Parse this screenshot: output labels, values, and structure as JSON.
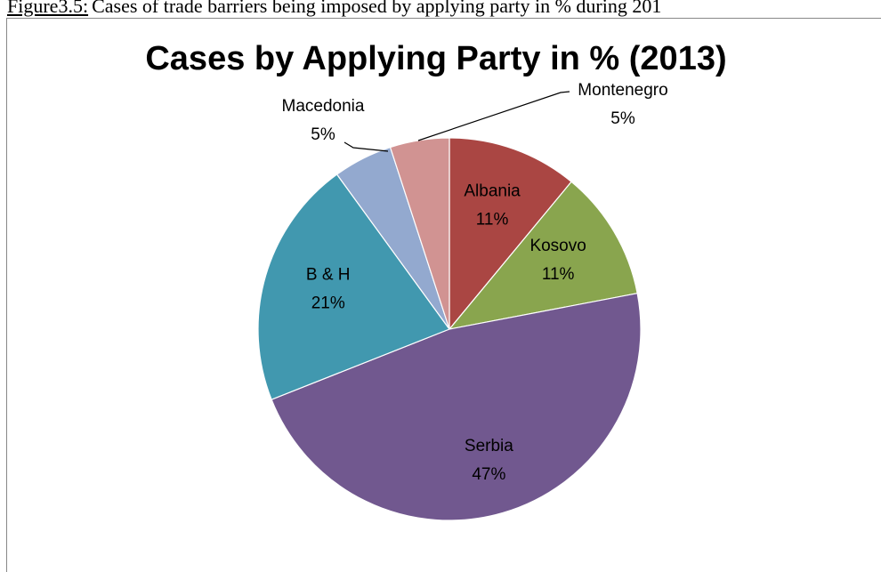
{
  "caption": {
    "label": "Figure3.5:",
    "text": "Cases of trade barriers being imposed by applying party in % during 201"
  },
  "chart_data": {
    "type": "pie",
    "title": "Cases by Applying Party in % (2013)",
    "categories": [
      "Albania",
      "Kosovo",
      "Serbia",
      "B & H",
      "Macedonia",
      "Montenegro"
    ],
    "values": [
      11,
      11,
      47,
      21,
      5,
      5
    ],
    "value_labels": [
      "11%",
      "11%",
      "47%",
      "21%",
      "5%",
      "5%"
    ],
    "colors": [
      "#aa4643",
      "#89a54e",
      "#71588f",
      "#4198af",
      "#93a9cf",
      "#d19392"
    ]
  }
}
